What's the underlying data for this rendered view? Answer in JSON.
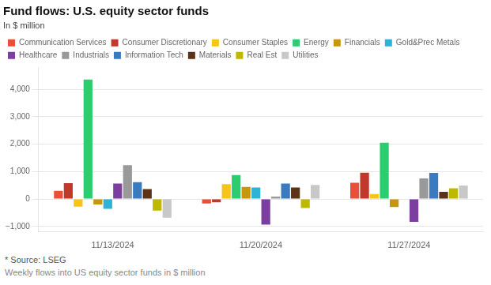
{
  "chart_data": {
    "type": "bar",
    "title": "Fund flows: U.S. equity sector funds",
    "subtitle": "In $ million",
    "footer": [
      "* Source: LSEG",
      "Weekly flows into US equity sector funds in $ million"
    ],
    "categories": [
      "11/13/2024",
      "11/20/2024",
      "11/27/2024"
    ],
    "series": [
      {
        "name": "Communication Services",
        "color": "#e8503a",
        "values": [
          300,
          -160,
          590
        ]
      },
      {
        "name": "Consumer Discretionary",
        "color": "#c0392b",
        "values": [
          580,
          -120,
          960
        ]
      },
      {
        "name": "Consumer Staples",
        "color": "#f5c518",
        "values": [
          -280,
          540,
          180
        ]
      },
      {
        "name": "Energy",
        "color": "#2ecc71",
        "values": [
          4350,
          870,
          2050
        ]
      },
      {
        "name": "Financials",
        "color": "#c8960c",
        "values": [
          -200,
          440,
          -290
        ]
      },
      {
        "name": "Gold&Prec Metals",
        "color": "#2db4d4",
        "values": [
          -360,
          420,
          20
        ]
      },
      {
        "name": "Healthcare",
        "color": "#7b3fa0",
        "values": [
          560,
          -930,
          -830
        ]
      },
      {
        "name": "Industrials",
        "color": "#999999",
        "values": [
          1230,
          90,
          750
        ]
      },
      {
        "name": "Information Tech",
        "color": "#3a7abf",
        "values": [
          610,
          560,
          950
        ]
      },
      {
        "name": "Materials",
        "color": "#5c3317",
        "values": [
          360,
          420,
          260
        ]
      },
      {
        "name": "Real Est",
        "color": "#bfb800",
        "values": [
          -420,
          -330,
          390
        ]
      },
      {
        "name": "Utilities",
        "color": "#c8c8c8",
        "values": [
          -680,
          510,
          490
        ]
      }
    ],
    "ylim": [
      -1200,
      4800
    ],
    "yticks": [
      {
        "value": -1000,
        "label": "−1,000"
      },
      0,
      {
        "value": 1000,
        "label": "1,000"
      },
      {
        "value": 2000,
        "label": "2,000"
      },
      {
        "value": 3000,
        "label": "3,000"
      },
      {
        "value": 4000,
        "label": "4,000"
      }
    ],
    "grid": true,
    "legend": "top"
  }
}
